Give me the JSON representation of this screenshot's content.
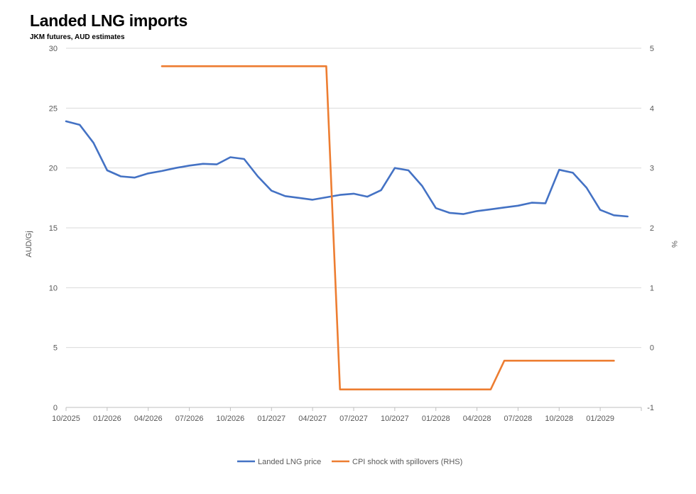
{
  "chart_data": {
    "type": "line",
    "title": "Landed LNG imports",
    "subtitle": "JKM futures, AUD estimates",
    "ylabel": "AUD/Gj",
    "y2label": "%",
    "ylim": [
      0,
      30
    ],
    "y2lim": [
      -1,
      5
    ],
    "yticks": [
      "0",
      "5",
      "10",
      "15",
      "20",
      "25",
      "30"
    ],
    "y2ticks": [
      "-1",
      "0",
      "1",
      "2",
      "3",
      "4",
      "5"
    ],
    "x_start": "2025-10",
    "xticks": [
      "10/2025",
      "01/2026",
      "04/2026",
      "07/2026",
      "10/2026",
      "01/2027",
      "04/2027",
      "07/2027",
      "10/2027",
      "01/2028",
      "04/2028",
      "07/2028",
      "10/2028",
      "01/2029"
    ],
    "grid": true,
    "legend_position": "bottom",
    "series": [
      {
        "name": "Landed LNG price",
        "axis": "left",
        "color": "#4472C4",
        "x": [
          "2025-10",
          "2025-11",
          "2025-12",
          "2026-01",
          "2026-02",
          "2026-03",
          "2026-04",
          "2026-05",
          "2026-06",
          "2026-07",
          "2026-08",
          "2026-09",
          "2026-10",
          "2026-11",
          "2026-12",
          "2027-01",
          "2027-02",
          "2027-03",
          "2027-04",
          "2027-05",
          "2027-06",
          "2027-07",
          "2027-08",
          "2027-09",
          "2027-10",
          "2027-11",
          "2027-12",
          "2028-01",
          "2028-02",
          "2028-03",
          "2028-04",
          "2028-05",
          "2028-06",
          "2028-07",
          "2028-08",
          "2028-09",
          "2028-10",
          "2028-11",
          "2028-12",
          "2029-01",
          "2029-02",
          "2029-03"
        ],
        "values": [
          23.9,
          23.6,
          22.1,
          19.8,
          19.3,
          19.2,
          19.55,
          19.75,
          20.0,
          20.2,
          20.35,
          20.3,
          20.9,
          20.75,
          19.3,
          18.1,
          17.65,
          17.5,
          17.35,
          17.55,
          17.75,
          17.85,
          17.6,
          18.15,
          20.0,
          19.8,
          18.5,
          16.65,
          16.25,
          16.15,
          16.4,
          16.55,
          16.7,
          16.85,
          17.1,
          17.05,
          19.85,
          19.6,
          18.35,
          16.5,
          16.05,
          15.95
        ]
      },
      {
        "name": "CPI shock with spillovers (RHS)",
        "axis": "right",
        "color": "#ED7D31",
        "x": [
          "2026-05",
          "2026-06",
          "2026-07",
          "2026-08",
          "2026-09",
          "2026-10",
          "2026-11",
          "2026-12",
          "2027-01",
          "2027-02",
          "2027-03",
          "2027-04",
          "2027-05",
          "2027-06",
          "2027-07",
          "2027-08",
          "2027-09",
          "2027-10",
          "2027-11",
          "2027-12",
          "2028-01",
          "2028-02",
          "2028-03",
          "2028-04",
          "2028-05",
          "2028-06",
          "2028-07",
          "2028-08",
          "2028-09",
          "2028-10",
          "2028-11",
          "2028-12",
          "2029-01",
          "2029-02"
        ],
        "values": [
          4.7,
          4.7,
          4.7,
          4.7,
          4.7,
          4.7,
          4.7,
          4.7,
          4.7,
          4.7,
          4.7,
          4.7,
          4.7,
          -0.7,
          -0.7,
          -0.7,
          -0.7,
          -0.7,
          -0.7,
          -0.7,
          -0.7,
          -0.7,
          -0.7,
          -0.7,
          -0.7,
          -0.22,
          -0.22,
          -0.22,
          -0.22,
          -0.22,
          -0.22,
          -0.22,
          -0.22,
          -0.22
        ]
      }
    ]
  }
}
